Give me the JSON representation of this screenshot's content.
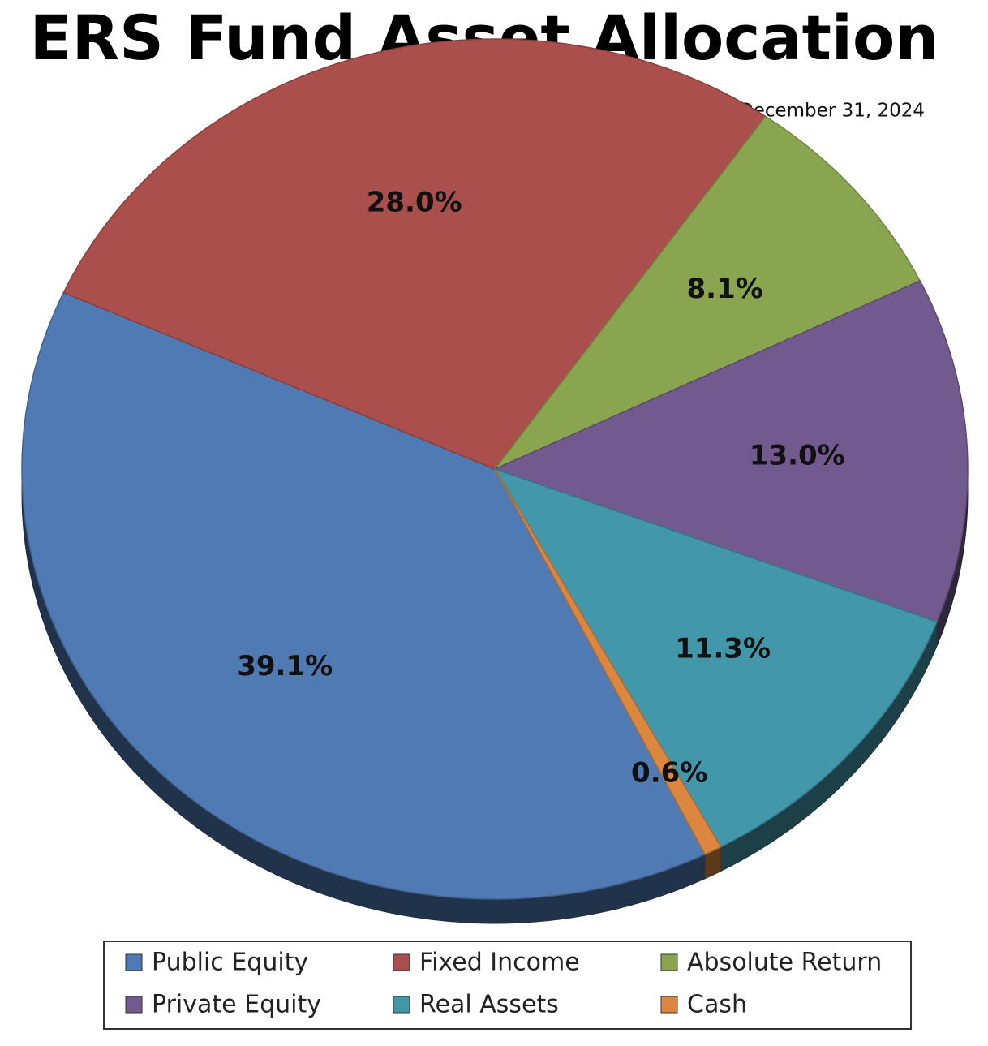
{
  "chart_data": {
    "type": "pie",
    "title": "ERS Fund Asset Allocation",
    "subtitle": "December 31, 2024",
    "categories": [
      "Public Equity",
      "Fixed Income",
      "Absolute Return",
      "Private Equity",
      "Real Assets",
      "Cash"
    ],
    "values": [
      39.1,
      28.0,
      8.1,
      13.0,
      11.3,
      0.6
    ],
    "value_labels": [
      "39.1%",
      "28.0%",
      "8.1%",
      "13.0%",
      "11.3%",
      "0.6%"
    ],
    "colors": [
      "#4f7ab3",
      "#ab4f4c",
      "#89a550",
      "#725a8f",
      "#4397ab",
      "#dc8740"
    ],
    "legend": "bottom"
  }
}
